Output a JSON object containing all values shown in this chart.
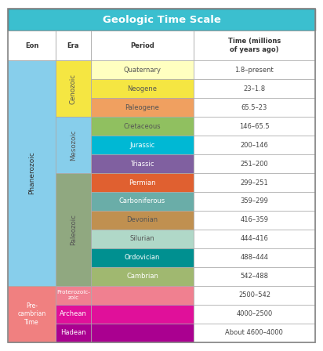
{
  "title": "Geologic Time Scale",
  "title_bg": "#3bbfcf",
  "title_color": "white",
  "col_headers": [
    "Eon",
    "Era",
    "Period",
    "Time (millions\nof years ago)"
  ],
  "rows": [
    {
      "period": "Quaternary",
      "period_color": "#ffffc0",
      "period_text": "#555555",
      "time": "1.8–present"
    },
    {
      "period": "Neogene",
      "period_color": "#f5e642",
      "period_text": "#555555",
      "time": "23–1.8"
    },
    {
      "period": "Paleogene",
      "period_color": "#f0a060",
      "period_text": "#555555",
      "time": "65.5–23"
    },
    {
      "period": "Cretaceous",
      "period_color": "#90c060",
      "period_text": "#555555",
      "time": "146–65.5"
    },
    {
      "period": "Jurassic",
      "period_color": "#00b8d4",
      "period_text": "#ffffff",
      "time": "200–146"
    },
    {
      "period": "Triassic",
      "period_color": "#8060a0",
      "period_text": "#ffffff",
      "time": "251–200"
    },
    {
      "period": "Permian",
      "period_color": "#e06030",
      "period_text": "#ffffff",
      "time": "299–251"
    },
    {
      "period": "Carboniferous",
      "period_color": "#6aada8",
      "period_text": "#ffffff",
      "time": "359–299"
    },
    {
      "period": "Devonian",
      "period_color": "#c09050",
      "period_text": "#555555",
      "time": "416–359"
    },
    {
      "period": "Silurian",
      "period_color": "#b0d8c8",
      "period_text": "#555555",
      "time": "444–416"
    },
    {
      "period": "Ordovician",
      "period_color": "#009090",
      "period_text": "#ffffff",
      "time": "488–444"
    },
    {
      "period": "Cambrian",
      "period_color": "#a0b870",
      "period_text": "#ffffff",
      "time": "542–488"
    }
  ],
  "era_spans": [
    {
      "name": "Cenozoic",
      "color": "#f5e642",
      "text_color": "#555555",
      "start": 0,
      "end": 3
    },
    {
      "name": "Mesozoic",
      "color": "#87ceeb",
      "text_color": "#555555",
      "start": 3,
      "end": 6
    },
    {
      "name": "Paleozoic",
      "color": "#90a880",
      "text_color": "#555555",
      "start": 6,
      "end": 12
    }
  ],
  "precambrian_rows": [
    {
      "era": "Proterozoic-\nzoic",
      "era_short": "Proterozoic-\nzoic",
      "era_color": "#f08090",
      "period_color": "#f08090",
      "time": "2500–542"
    },
    {
      "era": "Archean",
      "era_short": "Archean",
      "era_color": "#e0109a",
      "period_color": "#e0109a",
      "time": "4000–2500"
    },
    {
      "era": "Hadean",
      "era_short": "Hadean",
      "era_color": "#aa0090",
      "period_color": "#aa0090",
      "time": "About 4600–4000"
    }
  ],
  "phaner_eon_color": "#87ceeb",
  "precambrian_eon_color": "#f08080",
  "grid_color": "#aaaaaa"
}
